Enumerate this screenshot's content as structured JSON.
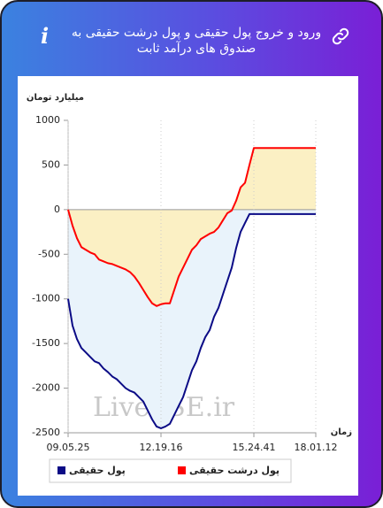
{
  "header": {
    "title": "ورود و خروج پول حقیقی و پول درشت حقیقی به صندوق های درآمد ثابت"
  },
  "chart_data": {
    "type": "line",
    "y_label": "میلیارد تومان",
    "x_label": "زمان",
    "watermark": "LiveTSE.ir",
    "categories": [
      "09.05.25",
      null,
      null,
      null,
      null,
      null,
      null,
      null,
      null,
      null,
      null,
      null,
      null,
      null,
      null,
      null,
      null,
      null,
      null,
      null,
      null,
      "12.19.16",
      null,
      null,
      null,
      null,
      null,
      null,
      null,
      null,
      null,
      null,
      null,
      null,
      null,
      null,
      null,
      null,
      null,
      null,
      null,
      null,
      "15.24.41",
      null,
      null,
      null,
      null,
      null,
      null,
      null,
      null,
      null,
      null,
      null,
      null,
      null,
      "18.01.12"
    ],
    "series": [
      {
        "name": "پول حقیقی",
        "color": "#0b0b86",
        "fill": "#e9f3fb",
        "values": [
          -1000,
          -1300,
          -1450,
          -1550,
          -1600,
          -1650,
          -1700,
          -1720,
          -1780,
          -1820,
          -1870,
          -1900,
          -1950,
          -2000,
          -2030,
          -2050,
          -2100,
          -2150,
          -2250,
          -2350,
          -2430,
          -2450,
          -2430,
          -2400,
          -2300,
          -2200,
          -2100,
          -1950,
          -1800,
          -1700,
          -1550,
          -1430,
          -1350,
          -1200,
          -1100,
          -950,
          -800,
          -650,
          -430,
          -250,
          -150,
          -50,
          -50,
          -50,
          -50,
          -50,
          -50,
          -50,
          -50,
          -50,
          -50,
          -50,
          -50,
          -50,
          -50,
          -50,
          -50
        ]
      },
      {
        "name": "پول درشت حقیقی",
        "color": "#ff0000",
        "fill": "#fbf0c4",
        "values": [
          0,
          -180,
          -320,
          -420,
          -450,
          -480,
          -500,
          -560,
          -580,
          -600,
          -610,
          -630,
          -650,
          -670,
          -700,
          -750,
          -820,
          -900,
          -980,
          -1050,
          -1080,
          -1060,
          -1050,
          -1050,
          -900,
          -750,
          -650,
          -550,
          -450,
          -400,
          -330,
          -300,
          -270,
          -250,
          -200,
          -120,
          -40,
          -10,
          100,
          250,
          300,
          500,
          690,
          690,
          690,
          690,
          690,
          690,
          690,
          690,
          690,
          690,
          690,
          690,
          690,
          690,
          690
        ]
      }
    ],
    "ylim": [
      -2500,
      1000
    ],
    "yticks": [
      1000,
      500,
      0,
      -500,
      -1000,
      -1500,
      -2000,
      -2500
    ],
    "grid": true
  }
}
